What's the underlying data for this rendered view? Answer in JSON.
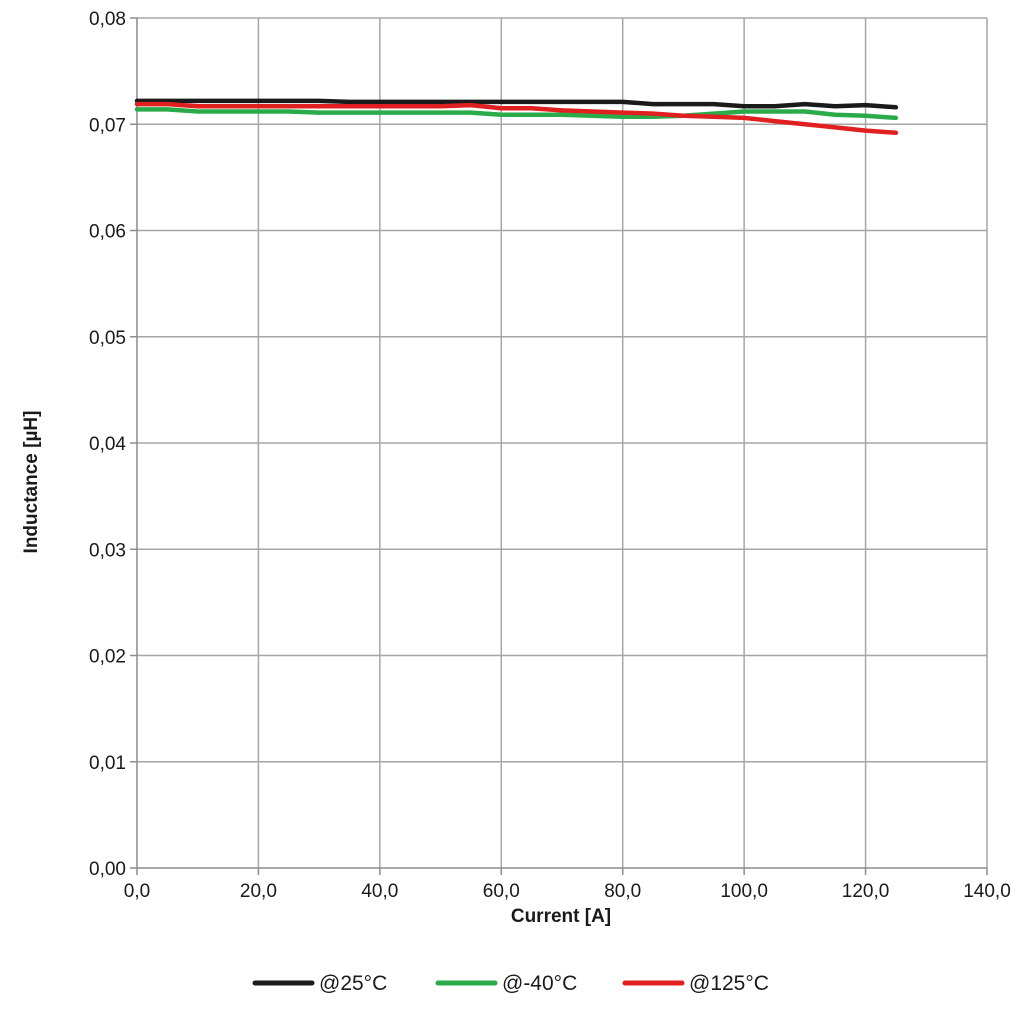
{
  "chart_data": {
    "type": "line",
    "title": "",
    "xlabel": "Current [A]",
    "ylabel": "Inductance [µH]",
    "xlim": [
      0,
      140
    ],
    "ylim": [
      0,
      0.08
    ],
    "x_ticks": [
      0,
      20,
      40,
      60,
      80,
      100,
      120,
      140
    ],
    "y_ticks": [
      0,
      0.01,
      0.02,
      0.03,
      0.04,
      0.05,
      0.06,
      0.07,
      0.08
    ],
    "x_tick_labels": [
      "0,0",
      "20,0",
      "40,0",
      "60,0",
      "80,0",
      "100,0",
      "120,0",
      "140,0"
    ],
    "y_tick_labels": [
      "0,00",
      "0,01",
      "0,02",
      "0,03",
      "0,04",
      "0,05",
      "0,06",
      "0,07",
      "0,08"
    ],
    "grid": true,
    "legend_position": "bottom",
    "series": [
      {
        "name": "@25°C",
        "color": "#1a1a1a",
        "x": [
          0,
          5,
          10,
          15,
          20,
          25,
          30,
          35,
          40,
          45,
          50,
          55,
          60,
          65,
          70,
          75,
          80,
          85,
          90,
          95,
          100,
          105,
          110,
          115,
          120,
          125
        ],
        "values": [
          0.0722,
          0.0722,
          0.0722,
          0.0722,
          0.0722,
          0.0722,
          0.0722,
          0.0721,
          0.0721,
          0.0721,
          0.0721,
          0.0721,
          0.0721,
          0.0721,
          0.0721,
          0.0721,
          0.0721,
          0.0719,
          0.0719,
          0.0719,
          0.0717,
          0.0717,
          0.0719,
          0.0717,
          0.0718,
          0.0716
        ]
      },
      {
        "name": "@-40°C",
        "color": "#2aab4a",
        "x": [
          0,
          5,
          10,
          15,
          20,
          25,
          30,
          35,
          40,
          45,
          50,
          55,
          60,
          65,
          70,
          75,
          80,
          85,
          90,
          95,
          100,
          105,
          110,
          115,
          120,
          125
        ],
        "values": [
          0.0714,
          0.0714,
          0.0712,
          0.0712,
          0.0712,
          0.0712,
          0.0711,
          0.0711,
          0.0711,
          0.0711,
          0.0711,
          0.0711,
          0.0709,
          0.0709,
          0.0709,
          0.0708,
          0.0707,
          0.0707,
          0.0708,
          0.071,
          0.0712,
          0.0712,
          0.0712,
          0.0709,
          0.0708,
          0.0706
        ]
      },
      {
        "name": "@125°C",
        "color": "#e02020",
        "x": [
          0,
          5,
          10,
          15,
          20,
          25,
          30,
          35,
          40,
          45,
          50,
          55,
          60,
          65,
          70,
          75,
          80,
          85,
          90,
          95,
          100,
          105,
          110,
          115,
          120,
          125
        ],
        "values": [
          0.0719,
          0.0719,
          0.0717,
          0.0717,
          0.0717,
          0.0717,
          0.0717,
          0.0717,
          0.0717,
          0.0717,
          0.0717,
          0.0718,
          0.0715,
          0.0715,
          0.0713,
          0.0712,
          0.0711,
          0.071,
          0.0708,
          0.0707,
          0.0706,
          0.0703,
          0.07,
          0.0697,
          0.0694,
          0.0692
        ]
      }
    ]
  }
}
